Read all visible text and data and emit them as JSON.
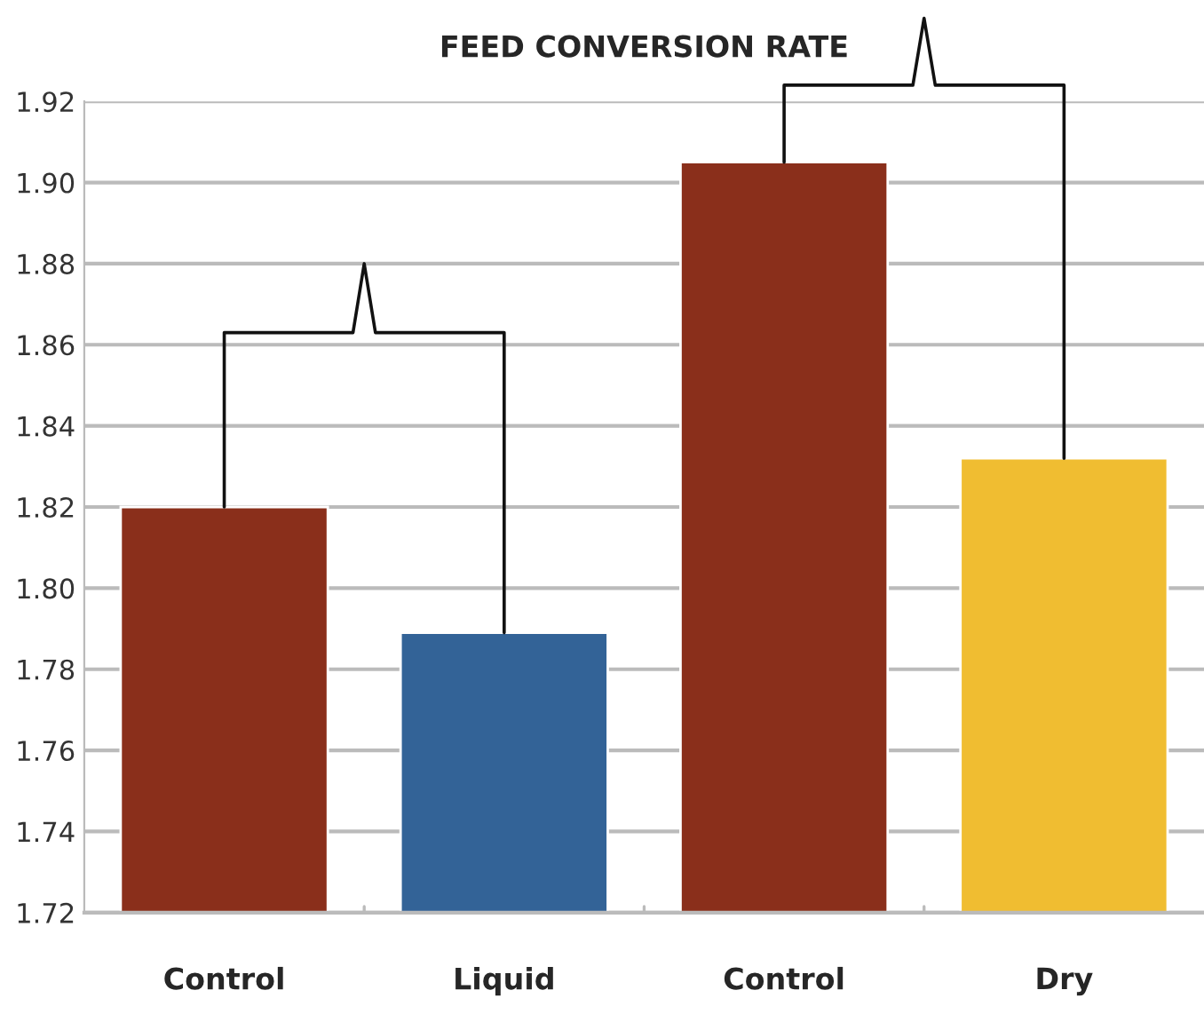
{
  "chart_data": {
    "type": "bar",
    "title": "FEED CONVERSION RATE",
    "categories": [
      "Control",
      "Liquid",
      "Control",
      "Dry"
    ],
    "values": [
      1.82,
      1.789,
      1.905,
      1.832
    ],
    "colors": [
      "#8a2f1b",
      "#336397",
      "#8a2f1b",
      "#f0bd31"
    ],
    "ylim": [
      1.72,
      1.92
    ],
    "yticks": [
      1.72,
      1.74,
      1.76,
      1.78,
      {
        "value": 1.8,
        "label": "1.80"
      },
      1.82,
      1.84,
      1.86,
      1.88,
      {
        "value": 1.9,
        "label": "1.90"
      },
      1.92
    ],
    "grid": "y"
  }
}
